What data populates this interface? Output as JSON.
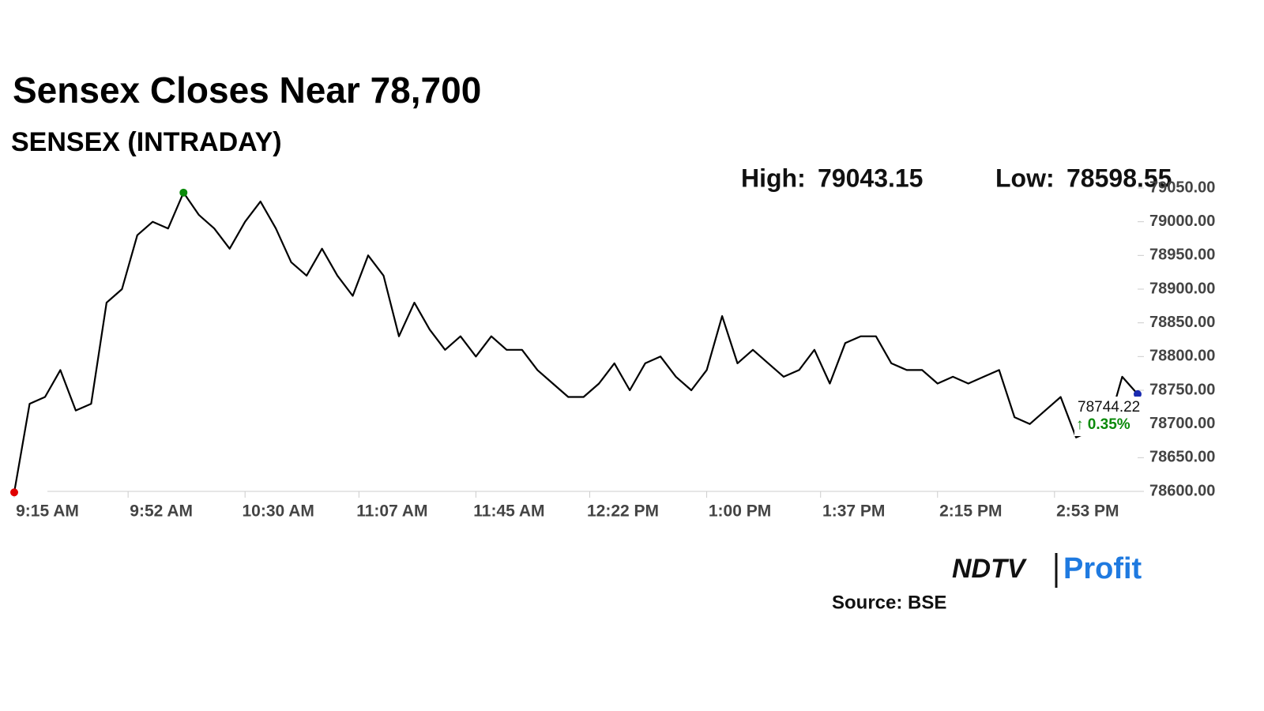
{
  "chart_data": {
    "type": "line",
    "title": "Sensex Closes Near 78,700",
    "subtitle": "SENSEX (INTRADAY)",
    "high": {
      "label": "High:",
      "value": 79043.15
    },
    "low": {
      "label": "Low:",
      "value": 78598.55
    },
    "last": {
      "value": 78744.22,
      "change": "↑ 0.35%"
    },
    "color": "#000000",
    "x": [
      "9:15 AM",
      "9:20 AM",
      "9:25 AM",
      "9:30 AM",
      "9:35 AM",
      "9:40 AM",
      "9:45 AM",
      "9:50 AM",
      "9:55 AM",
      "10:00 AM",
      "10:05 AM",
      "10:10 AM",
      "10:15 AM",
      "10:20 AM",
      "10:25 AM",
      "10:30 AM",
      "10:35 AM",
      "10:40 AM",
      "10:45 AM",
      "10:50 AM",
      "10:55 AM",
      "11:00 AM",
      "11:05 AM",
      "11:10 AM",
      "11:15 AM",
      "11:20 AM",
      "11:25 AM",
      "11:30 AM",
      "11:35 AM",
      "11:40 AM",
      "11:45 AM",
      "11:50 AM",
      "11:55 AM",
      "12:00 PM",
      "12:05 PM",
      "12:10 PM",
      "12:15 PM",
      "12:20 PM",
      "12:25 PM",
      "12:30 PM",
      "12:35 PM",
      "12:40 PM",
      "12:45 PM",
      "12:50 PM",
      "12:55 PM",
      "1:00 PM",
      "1:05 PM",
      "1:10 PM",
      "1:15 PM",
      "1:20 PM",
      "1:25 PM",
      "1:30 PM",
      "1:35 PM",
      "1:40 PM",
      "1:45 PM",
      "1:50 PM",
      "1:55 PM",
      "2:00 PM",
      "2:05 PM",
      "2:10 PM",
      "2:15 PM",
      "2:20 PM",
      "2:25 PM",
      "2:30 PM",
      "2:35 PM",
      "2:40 PM",
      "2:45 PM",
      "2:50 PM",
      "2:55 PM",
      "3:00 PM",
      "3:05 PM",
      "3:10 PM",
      "3:15 PM",
      "3:20 PM"
    ],
    "values": [
      78598.55,
      78730,
      78740,
      78780,
      78720,
      78730,
      78880,
      78900,
      78980,
      79000,
      78990,
      79043.15,
      79010,
      78990,
      78960,
      79000,
      79030,
      78990,
      78940,
      78920,
      78960,
      78920,
      78890,
      78950,
      78920,
      78830,
      78880,
      78840,
      78810,
      78830,
      78800,
      78830,
      78810,
      78810,
      78780,
      78760,
      78740,
      78740,
      78760,
      78790,
      78750,
      78790,
      78800,
      78770,
      78750,
      78780,
      78860,
      78790,
      78810,
      78790,
      78770,
      78780,
      78810,
      78760,
      78820,
      78830,
      78830,
      78790,
      78780,
      78780,
      78760,
      78770,
      78760,
      78770,
      78780,
      78710,
      78700,
      78720,
      78740,
      78680,
      78690,
      78690,
      78770,
      78744.22
    ],
    "ylim": [
      78600,
      79050
    ],
    "yticks": [
      {
        "value": 78600,
        "label": "78600.00"
      },
      {
        "value": 78650,
        "label": "78650.00"
      },
      {
        "value": 78700,
        "label": "78700.00"
      },
      {
        "value": 78750,
        "label": "78750.00"
      },
      {
        "value": 78800,
        "label": "78800.00"
      },
      {
        "value": 78850,
        "label": "78850.00"
      },
      {
        "value": 78900,
        "label": "78900.00"
      },
      {
        "value": 78950,
        "label": "78950.00"
      },
      {
        "value": 79000,
        "label": "79000.00"
      },
      {
        "value": 79050,
        "label": "79050.00"
      }
    ],
    "xticks": [
      "9:15 AM",
      "9:52 AM",
      "10:30 AM",
      "11:07 AM",
      "11:45 AM",
      "12:22 PM",
      "1:00 PM",
      "1:37 PM",
      "2:15 PM",
      "2:53 PM"
    ],
    "brand": [
      "NDTV",
      "Profit"
    ],
    "source": "Source: BSE"
  }
}
